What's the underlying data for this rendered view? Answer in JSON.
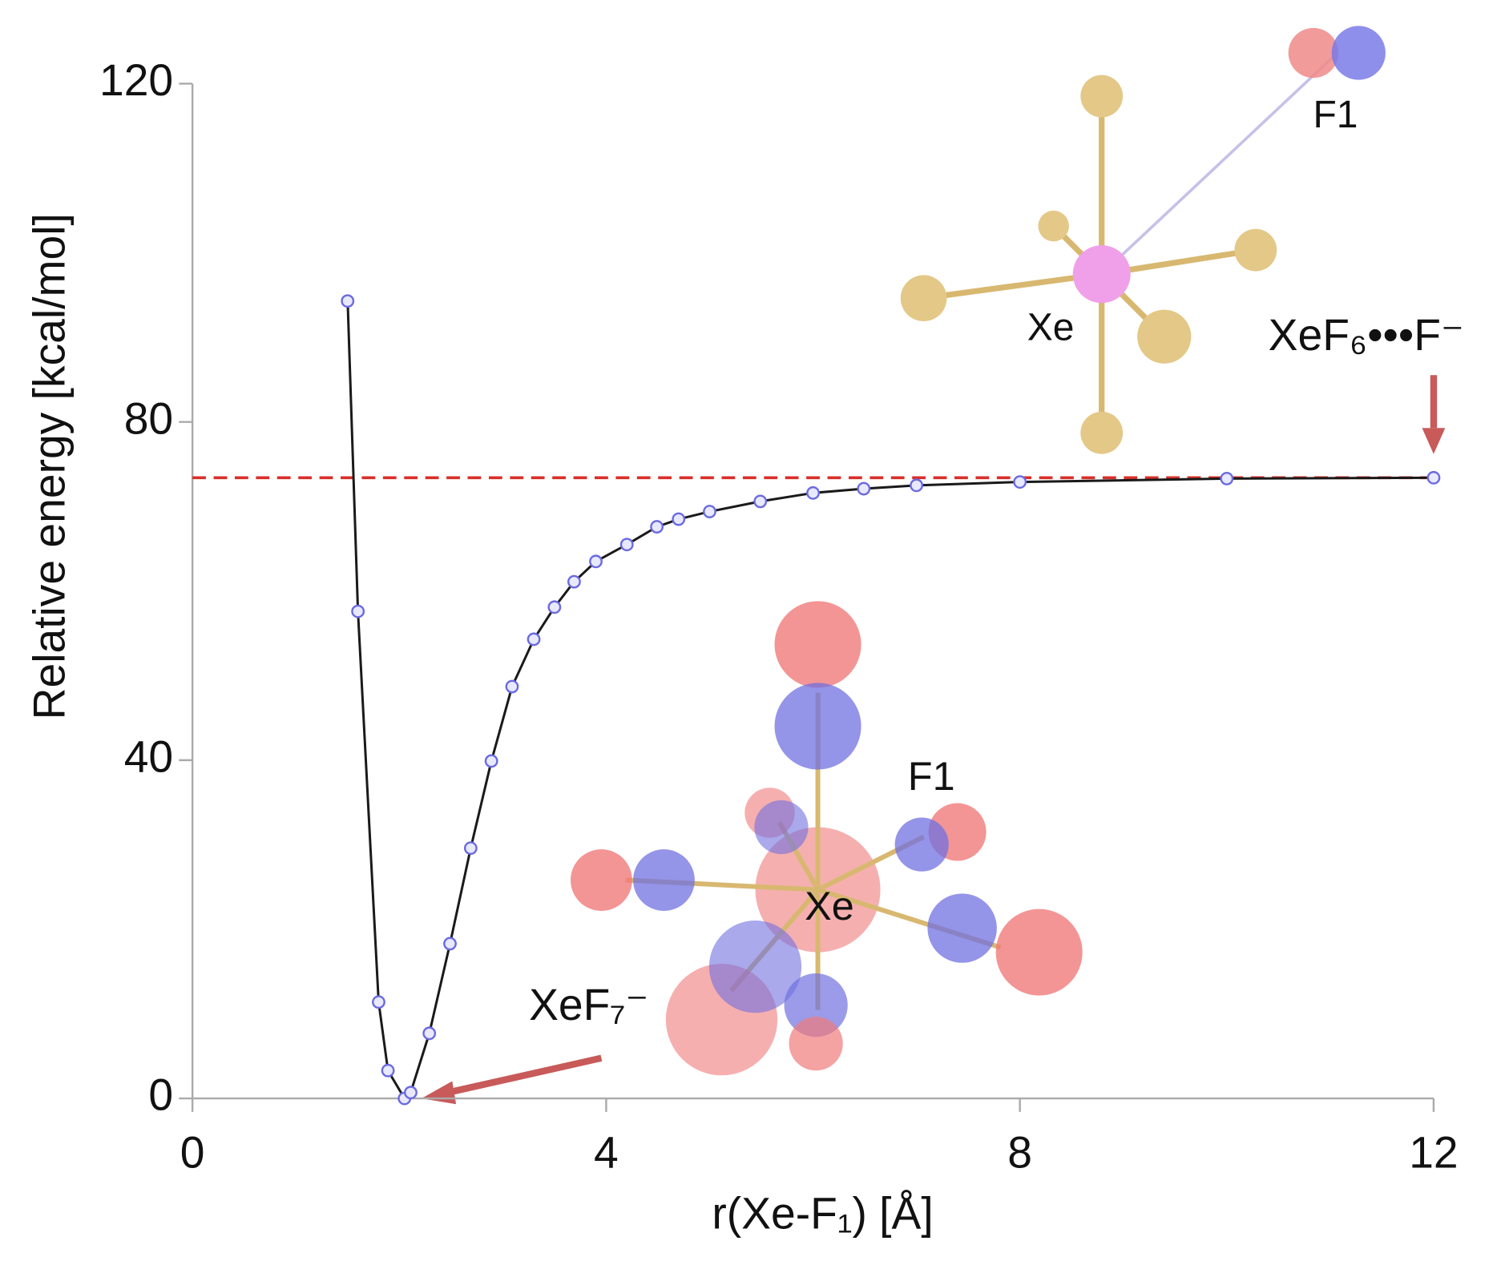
{
  "chart_data": {
    "type": "line",
    "xlabel": "r(Xe-F₁)  [Å]",
    "ylabel": "Relative energy [kcal/mol]",
    "x": [
      1.5,
      1.6,
      1.8,
      1.89,
      2.05,
      2.11,
      2.29,
      2.49,
      2.69,
      2.89,
      3.09,
      3.3,
      3.5,
      3.69,
      3.9,
      4.2,
      4.49,
      4.7,
      5.0,
      5.49,
      6.0,
      6.49,
      7.0,
      8.0,
      10.0,
      12.0
    ],
    "values": [
      94.3,
      57.6,
      11.4,
      3.3,
      0,
      0.7,
      7.7,
      18.3,
      29.6,
      39.9,
      48.7,
      54.3,
      58.1,
      61.1,
      63.5,
      65.5,
      67.6,
      68.5,
      69.4,
      70.6,
      71.6,
      72.1,
      72.5,
      72.9,
      73.3,
      73.4
    ],
    "color": "#1a1a1a",
    "marker_color": "#6a6ae0",
    "xlim": [
      0,
      12
    ],
    "ylim": [
      0,
      120
    ],
    "xticks": [
      0,
      4,
      8,
      12
    ],
    "yticks": [
      0,
      40,
      80,
      120
    ],
    "hline": {
      "value": 73.4,
      "color": "#d9302a"
    },
    "annotations": [
      "XeF₇⁻",
      "XeF₆•••F⁻",
      "Xe",
      "F1",
      "Xe",
      "F1"
    ]
  }
}
